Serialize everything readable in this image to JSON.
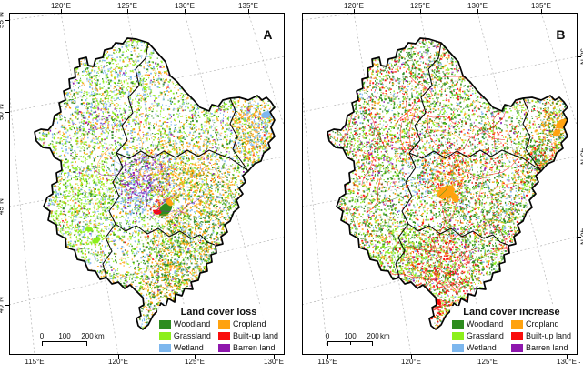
{
  "figure": {
    "caption_period": "."
  },
  "legend": {
    "items": [
      {
        "label": "Woodland",
        "color": "#2e8c1f"
      },
      {
        "label": "Cropland",
        "color": "#ffa20f"
      },
      {
        "label": "Grassland",
        "color": "#8cef1b"
      },
      {
        "label": "Built-up land",
        "color": "#f90d0c"
      },
      {
        "label": "Wetland",
        "color": "#7db7ee"
      },
      {
        "label": "Barren land",
        "color": "#8e17ad"
      }
    ]
  },
  "panels": [
    {
      "label": "A",
      "legend_title": "Land cover loss",
      "axis": {
        "top": [
          "120°E",
          "125°E",
          "130°E",
          "135°E"
        ],
        "bottom": [
          "115°E",
          "120°E",
          "125°E",
          "130°E"
        ],
        "left": [
          "55°N",
          "50°N",
          "45°N",
          "40°N"
        ],
        "right": []
      },
      "scalebar": {
        "tick_labels": [
          "0",
          "100",
          "200"
        ],
        "unit": "km"
      }
    },
    {
      "label": "B",
      "legend_title": "Land cover increase",
      "axis": {
        "top": [
          "120°E",
          "125°E",
          "130°E",
          "135°E"
        ],
        "bottom": [
          "115°E",
          "120°E",
          "125°E",
          "130°E"
        ],
        "left": [],
        "right": [
          "50°N",
          "45°N",
          "40°N"
        ]
      },
      "scalebar": {
        "tick_labels": [
          "0",
          "100",
          "200"
        ],
        "unit": "km"
      }
    }
  ]
}
